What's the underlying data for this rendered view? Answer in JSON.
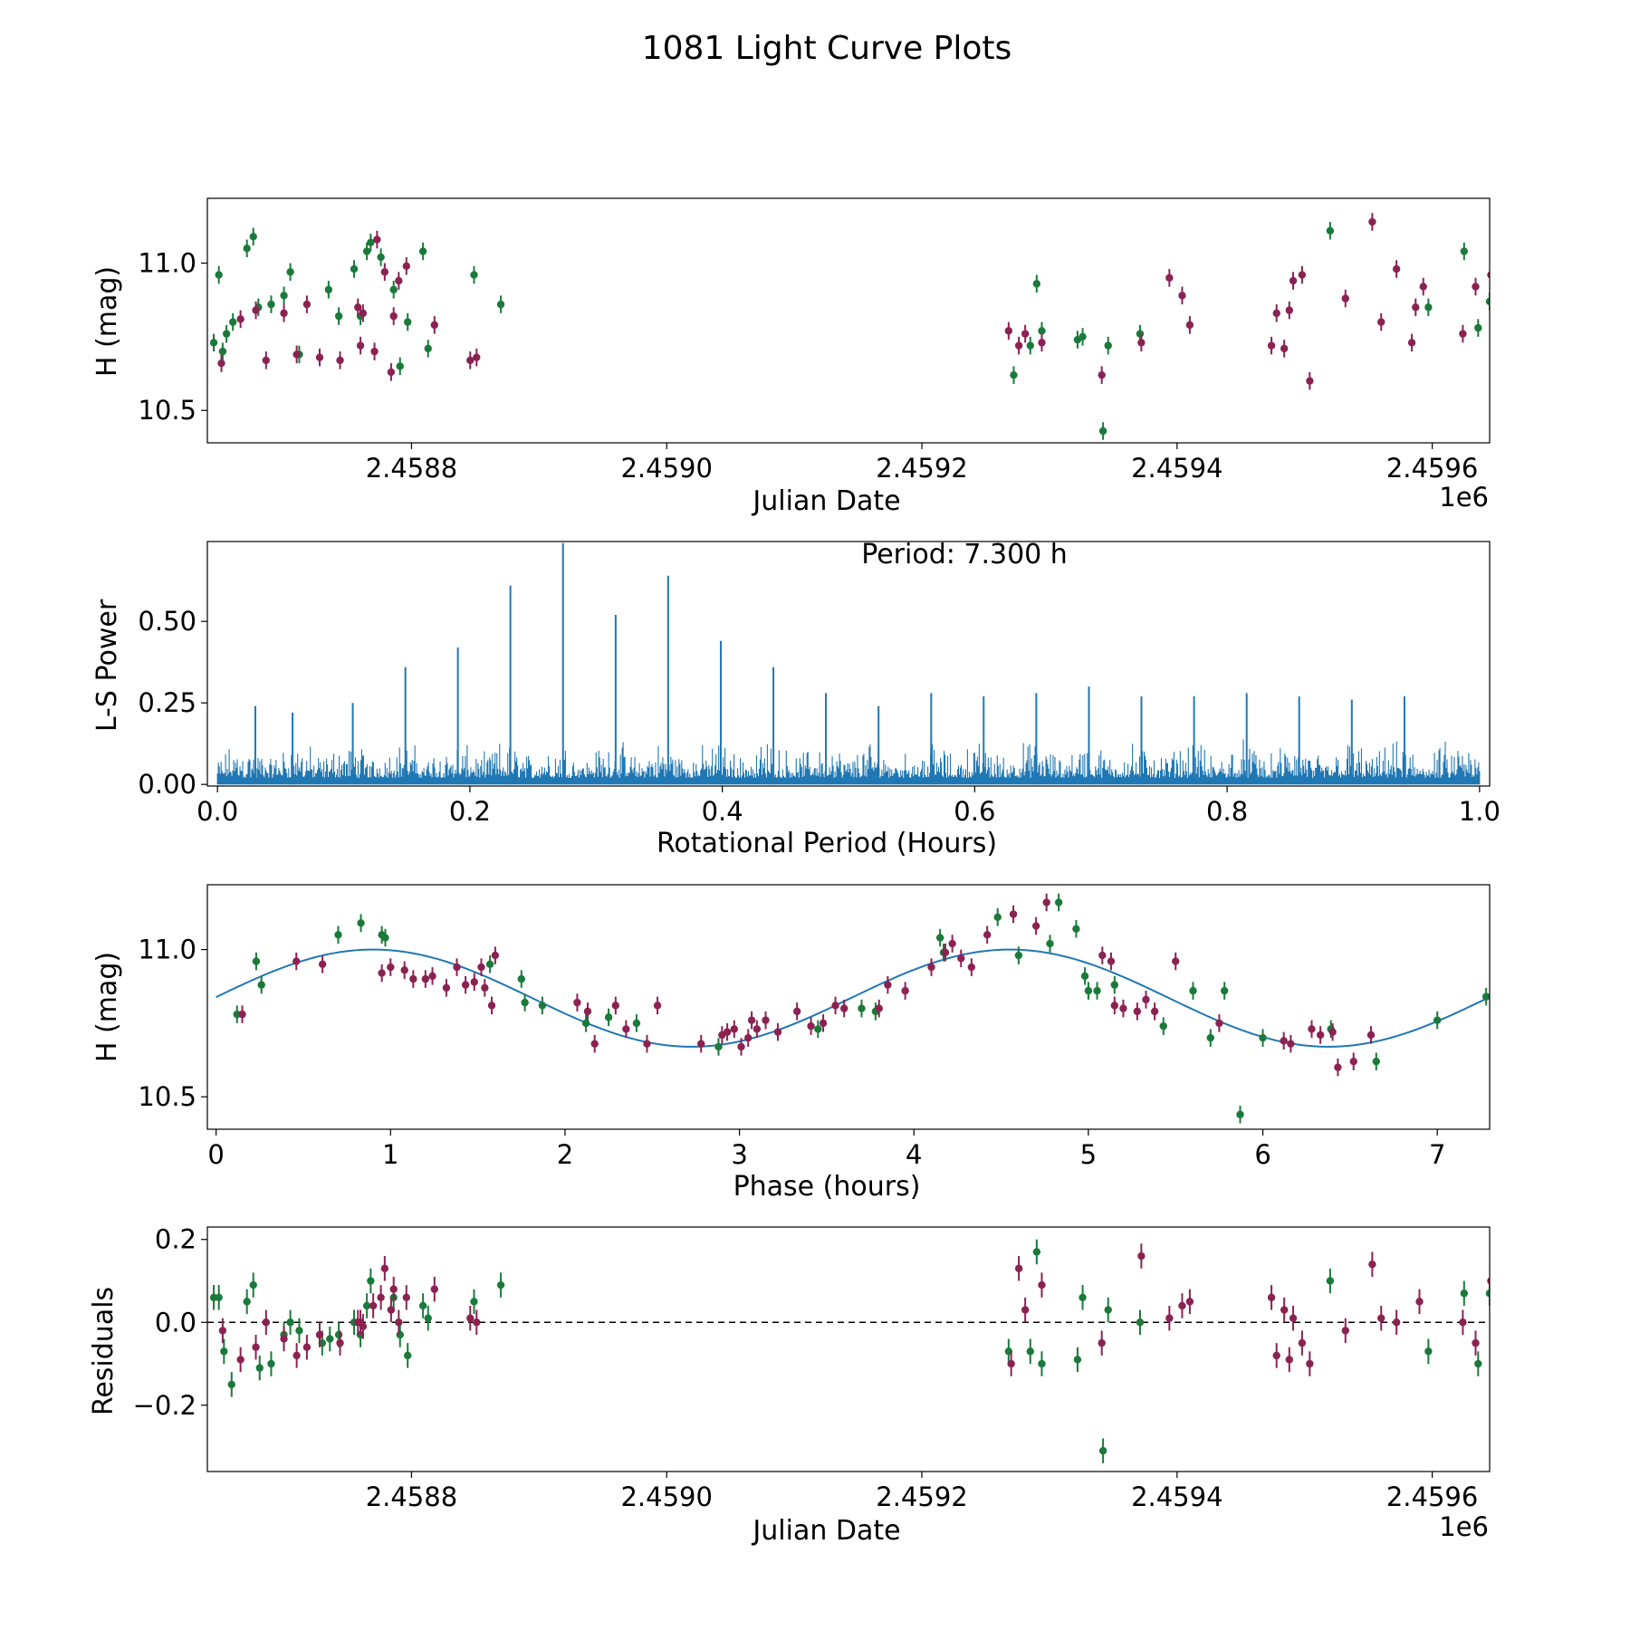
{
  "figure": {
    "title": "1081 Light Curve Plots"
  },
  "colors": {
    "bandA": "#1a7a3a",
    "bandB": "#8b2252",
    "line": "#1f77b4",
    "axis": "#000000"
  },
  "chart_data": [
    {
      "id": "lightcurve",
      "type": "scatter",
      "title": "",
      "xlabel": "Julian Date",
      "ylabel": "H (mag)",
      "x_offset_label": "1e6",
      "xlim": [
        2458640,
        2459645
      ],
      "ylim": [
        10.39,
        11.22
      ],
      "xticks": [
        2458800,
        2459000,
        2459200,
        2459400,
        2459600
      ],
      "xtick_labels": [
        "2.4588",
        "2.4590",
        "2.4592",
        "2.4594",
        "2.4596"
      ],
      "yticks": [
        10.5,
        11.0
      ],
      "ytick_labels": [
        "10.5",
        "11.0"
      ],
      "series": [
        {
          "name": "green",
          "color": "#1a7a3a",
          "err": 0.03,
          "x": [
            2458645,
            2458649,
            2458652,
            2458655,
            2458660,
            2458671,
            2458676,
            2458680,
            2458690,
            2458700,
            2458705,
            2458712,
            2458735,
            2458743,
            2458755,
            2458760,
            2458765,
            2458768,
            2458776,
            2458786,
            2458791,
            2458797,
            2458809,
            2458813,
            2458849,
            2458870,
            2459272,
            2459285,
            2459290,
            2459294,
            2459322,
            2459326,
            2459342,
            2459346,
            2459371,
            2459520,
            2459597,
            2459625,
            2459636,
            2459645
          ],
          "y": [
            10.73,
            10.96,
            10.7,
            10.76,
            10.8,
            11.05,
            11.09,
            10.85,
            10.86,
            10.89,
            10.97,
            10.69,
            10.91,
            10.82,
            10.98,
            10.82,
            11.04,
            11.07,
            11.02,
            10.91,
            10.65,
            10.8,
            11.04,
            10.71,
            10.96,
            10.86,
            10.62,
            10.72,
            10.93,
            10.77,
            10.74,
            10.75,
            10.43,
            10.72,
            10.76,
            11.11,
            10.85,
            11.04,
            10.78,
            10.87
          ]
        },
        {
          "name": "purple",
          "color": "#8b2252",
          "err": 0.03,
          "x": [
            2458651,
            2458666,
            2458678,
            2458686,
            2458700,
            2458710,
            2458718,
            2458728,
            2458744,
            2458758,
            2458760,
            2458762,
            2458771,
            2458773,
            2458779,
            2458784,
            2458786,
            2458790,
            2458796,
            2458818,
            2458846,
            2458851,
            2459268,
            2459276,
            2459281,
            2459294,
            2459341,
            2459372,
            2459394,
            2459404,
            2459410,
            2459474,
            2459478,
            2459484,
            2459488,
            2459491,
            2459504,
            2459498,
            2459532,
            2459553,
            2459560,
            2459572,
            2459584,
            2459587,
            2459593,
            2459624,
            2459634,
            2459646
          ],
          "y": [
            10.66,
            10.81,
            10.84,
            10.67,
            10.83,
            10.69,
            10.86,
            10.68,
            10.67,
            10.85,
            10.72,
            10.83,
            10.7,
            11.08,
            10.97,
            10.63,
            10.82,
            10.94,
            10.99,
            10.79,
            10.67,
            10.68,
            10.77,
            10.72,
            10.76,
            10.73,
            10.62,
            10.73,
            10.95,
            10.89,
            10.79,
            10.72,
            10.83,
            10.71,
            10.84,
            10.94,
            10.6,
            10.96,
            10.88,
            11.14,
            10.8,
            10.98,
            10.73,
            10.85,
            10.92,
            10.76,
            10.92,
            10.96
          ]
        }
      ]
    },
    {
      "id": "periodogram",
      "type": "line",
      "title": "",
      "annotation": "Period: 7.300 h",
      "xlabel": "Rotational Period (Hours)",
      "ylabel": "L-S Power",
      "xlim": [
        -0.008,
        1.008
      ],
      "ylim": [
        -0.005,
        0.745
      ],
      "xticks": [
        0.0,
        0.2,
        0.4,
        0.6,
        0.8,
        1.0
      ],
      "xtick_labels": [
        "0.0",
        "0.2",
        "0.4",
        "0.6",
        "0.8",
        "1.0"
      ],
      "yticks": [
        0.0,
        0.25,
        0.5
      ],
      "ytick_labels": [
        "0.00",
        "0.25",
        "0.50"
      ],
      "baseline": 0.02,
      "noise_amplitude": 0.13,
      "peaks": {
        "x": [
          0.03,
          0.0595,
          0.1072,
          0.1489,
          0.1905,
          0.2321,
          0.2738,
          0.3155,
          0.3571,
          0.3988,
          0.4405,
          0.4821,
          0.5238,
          0.5655,
          0.6071,
          0.6488,
          0.6905,
          0.7321,
          0.7738,
          0.8155,
          0.8571,
          0.8988,
          0.9405
        ],
        "y": [
          0.24,
          0.22,
          0.25,
          0.36,
          0.42,
          0.61,
          0.74,
          0.52,
          0.64,
          0.44,
          0.36,
          0.28,
          0.24,
          0.28,
          0.27,
          0.28,
          0.3,
          0.27,
          0.27,
          0.28,
          0.27,
          0.26,
          0.27
        ]
      }
    },
    {
      "id": "phased",
      "type": "scatter",
      "title": "",
      "xlabel": "Phase (hours)",
      "ylabel": "H (mag)",
      "xlim": [
        -0.05,
        7.3
      ],
      "ylim": [
        10.39,
        11.22
      ],
      "xticks": [
        0,
        1,
        2,
        3,
        4,
        5,
        6,
        7
      ],
      "xtick_labels": [
        "0",
        "1",
        "2",
        "3",
        "4",
        "5",
        "6",
        "7"
      ],
      "yticks": [
        10.5,
        11.0
      ],
      "ytick_labels": [
        "10.5",
        "11.0"
      ],
      "model": {
        "type": "sine",
        "mean": 10.835,
        "amplitude": 0.165,
        "period": 3.65,
        "peak_phase": 0.9,
        "color": "#1f77b4"
      },
      "series": [
        {
          "name": "green",
          "color": "#1a7a3a",
          "err": 0.03,
          "x": [
            0.12,
            0.23,
            0.26,
            0.7,
            0.83,
            0.95,
            0.97,
            1.57,
            1.75,
            1.77,
            1.87,
            2.12,
            2.25,
            2.41,
            2.88,
            3.45,
            3.7,
            3.78,
            4.15,
            4.17,
            4.48,
            4.6,
            4.78,
            4.83,
            4.93,
            4.98,
            5.0,
            5.05,
            5.15,
            5.43,
            5.6,
            5.7,
            5.78,
            5.87,
            6.0,
            6.39,
            6.65,
            7.0,
            7.28
          ],
          "y": [
            10.78,
            10.96,
            10.88,
            11.05,
            11.09,
            11.05,
            11.04,
            10.95,
            10.9,
            10.82,
            10.81,
            10.75,
            10.77,
            10.75,
            10.67,
            10.73,
            10.8,
            10.79,
            11.04,
            10.99,
            11.11,
            10.98,
            11.02,
            11.16,
            11.07,
            10.91,
            10.86,
            10.86,
            10.88,
            10.74,
            10.86,
            10.7,
            10.86,
            10.44,
            10.7,
            10.73,
            10.62,
            10.76,
            10.84
          ]
        },
        {
          "name": "purple",
          "color": "#8b2252",
          "err": 0.03,
          "x": [
            0.15,
            0.46,
            0.61,
            0.95,
            1.0,
            1.08,
            1.13,
            1.2,
            1.24,
            1.32,
            1.38,
            1.43,
            1.48,
            1.52,
            1.54,
            1.58,
            1.6,
            2.07,
            2.13,
            2.17,
            2.29,
            2.35,
            2.47,
            2.53,
            2.78,
            2.9,
            2.93,
            2.97,
            3.01,
            3.05,
            3.07,
            3.1,
            3.15,
            3.22,
            3.33,
            3.41,
            3.48,
            3.55,
            3.6,
            3.8,
            3.85,
            3.95,
            4.1,
            4.18,
            4.22,
            4.27,
            4.33,
            4.42,
            4.57,
            4.7,
            4.76,
            5.08,
            5.13,
            5.15,
            5.2,
            5.28,
            5.33,
            5.38,
            5.5,
            5.75,
            6.12,
            6.16,
            6.28,
            6.33,
            6.4,
            6.43,
            6.52,
            6.62
          ],
          "y": [
            10.78,
            10.96,
            10.95,
            10.92,
            10.94,
            10.93,
            10.9,
            10.9,
            10.91,
            10.87,
            10.94,
            10.88,
            10.89,
            10.94,
            10.87,
            10.81,
            10.98,
            10.82,
            10.79,
            10.68,
            10.81,
            10.73,
            10.68,
            10.81,
            10.68,
            10.71,
            10.72,
            10.73,
            10.67,
            10.7,
            10.76,
            10.73,
            10.76,
            10.72,
            10.79,
            10.74,
            10.75,
            10.81,
            10.8,
            10.8,
            10.88,
            10.86,
            10.94,
            10.99,
            11.02,
            10.97,
            10.94,
            11.05,
            11.12,
            11.08,
            11.16,
            10.98,
            10.96,
            10.81,
            10.8,
            10.79,
            10.83,
            10.79,
            10.96,
            10.75,
            10.69,
            10.68,
            10.73,
            10.71,
            10.72,
            10.6,
            10.62,
            10.71
          ]
        }
      ]
    },
    {
      "id": "residuals",
      "type": "scatter",
      "title": "",
      "xlabel": "Julian Date",
      "ylabel": "Residuals",
      "x_offset_label": "1e6",
      "xlim": [
        2458640,
        2459645
      ],
      "ylim": [
        -0.36,
        0.23
      ],
      "xticks": [
        2458800,
        2459000,
        2459200,
        2459400,
        2459600
      ],
      "xtick_labels": [
        "2.4588",
        "2.4590",
        "2.4592",
        "2.4594",
        "2.4596"
      ],
      "yticks": [
        -0.2,
        0.0,
        0.2
      ],
      "ytick_labels": [
        "−0.2",
        "0.0",
        "0.2"
      ],
      "reference_line": 0.0,
      "series": [
        {
          "name": "green",
          "color": "#1a7a3a",
          "err": 0.03,
          "x": [
            2458645,
            2458649,
            2458653,
            2458659,
            2458671,
            2458676,
            2458681,
            2458690,
            2458700,
            2458705,
            2458712,
            2458730,
            2458736,
            2458743,
            2458755,
            2458760,
            2458765,
            2458768,
            2458786,
            2458791,
            2458797,
            2458809,
            2458813,
            2458849,
            2458870,
            2459268,
            2459285,
            2459290,
            2459294,
            2459322,
            2459326,
            2459342,
            2459346,
            2459371,
            2459520,
            2459597,
            2459625,
            2459636,
            2459645
          ],
          "y": [
            0.06,
            0.06,
            -0.07,
            -0.15,
            0.05,
            0.09,
            -0.11,
            -0.1,
            -0.03,
            0.0,
            -0.02,
            -0.05,
            -0.04,
            -0.03,
            0.0,
            -0.03,
            0.04,
            0.1,
            0.06,
            -0.03,
            -0.08,
            0.04,
            0.01,
            0.05,
            0.09,
            -0.07,
            -0.07,
            0.17,
            -0.1,
            -0.09,
            0.06,
            -0.31,
            0.03,
            0.0,
            0.1,
            -0.07,
            0.07,
            -0.1,
            0.07
          ]
        },
        {
          "name": "purple",
          "color": "#8b2252",
          "err": 0.03,
          "x": [
            2458652,
            2458666,
            2458678,
            2458686,
            2458700,
            2458710,
            2458718,
            2458728,
            2458744,
            2458758,
            2458760,
            2458762,
            2458770,
            2458776,
            2458779,
            2458784,
            2458786,
            2458790,
            2458796,
            2458818,
            2458846,
            2458851,
            2459270,
            2459276,
            2459281,
            2459294,
            2459341,
            2459372,
            2459394,
            2459404,
            2459410,
            2459474,
            2459478,
            2459484,
            2459488,
            2459491,
            2459498,
            2459504,
            2459532,
            2459553,
            2459560,
            2459572,
            2459590,
            2459624,
            2459634,
            2459646
          ],
          "y": [
            -0.02,
            -0.09,
            -0.06,
            0.0,
            -0.04,
            -0.08,
            -0.06,
            -0.03,
            -0.05,
            0.0,
            0.0,
            -0.01,
            0.04,
            0.06,
            0.13,
            0.03,
            0.08,
            0.0,
            0.06,
            0.08,
            0.01,
            0.0,
            -0.1,
            0.13,
            0.03,
            0.09,
            -0.05,
            0.16,
            0.01,
            0.04,
            0.05,
            0.06,
            -0.08,
            0.03,
            -0.09,
            0.01,
            -0.05,
            -0.1,
            -0.02,
            0.14,
            0.01,
            0.0,
            0.05,
            0.0,
            -0.05,
            0.1
          ]
        }
      ]
    }
  ]
}
